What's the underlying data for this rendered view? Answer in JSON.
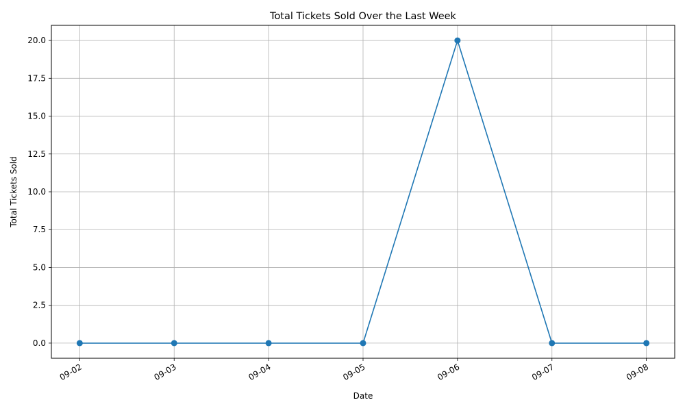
{
  "chart_data": {
    "type": "line",
    "title": "Total Tickets Sold Over the Last Week",
    "xlabel": "Date",
    "ylabel": "Total Tickets Sold",
    "categories": [
      "09-02",
      "09-03",
      "09-04",
      "09-05",
      "09-06",
      "09-07",
      "09-08"
    ],
    "series": [
      {
        "values": [
          0,
          0,
          0,
          0,
          20,
          0,
          0
        ],
        "color": "#1f77b4",
        "marker": "circle"
      }
    ],
    "ylim": [
      -1,
      21
    ],
    "yticks": [
      0.0,
      2.5,
      5.0,
      7.5,
      10.0,
      12.5,
      15.0,
      17.5,
      20.0
    ],
    "ytick_labels": [
      "0.0",
      "2.5",
      "5.0",
      "7.5",
      "10.0",
      "12.5",
      "15.0",
      "17.5",
      "20.0"
    ],
    "grid": true,
    "grid_color": "#b0b0b0"
  }
}
